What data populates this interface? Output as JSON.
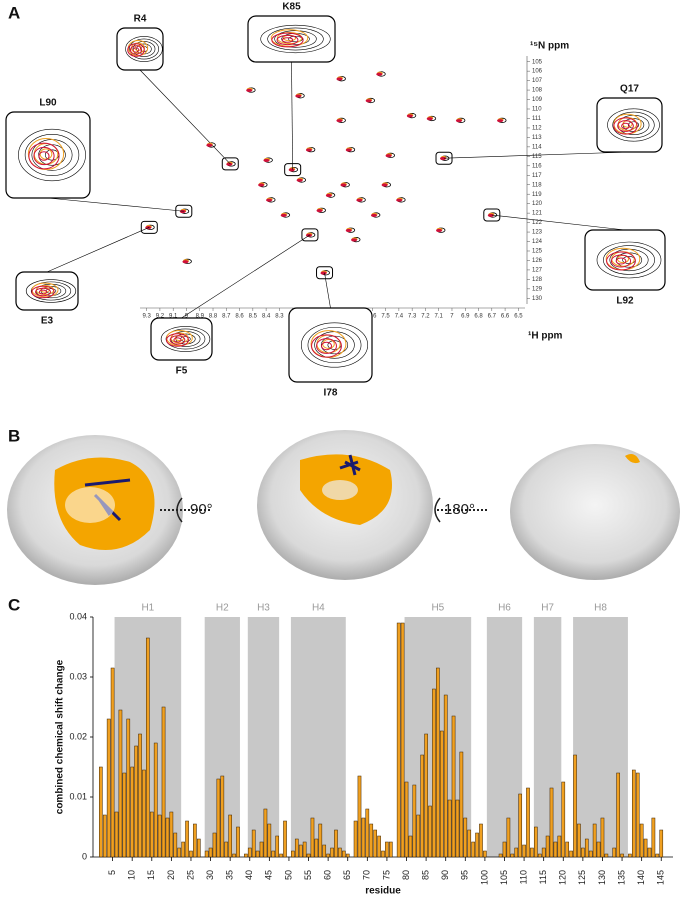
{
  "panel_labels": [
    "A",
    "B",
    "C"
  ],
  "panel_b": {
    "rotations": [
      "90°",
      "180°"
    ]
  },
  "chart_data": [
    {
      "type": "scatter",
      "x_label": "¹H ppm",
      "y_label": "¹⁵N ppm",
      "xlim": [
        9.35,
        6.45
      ],
      "ylim": [
        130.6,
        104.4
      ],
      "xticks": [
        9.3,
        9.2,
        9.1,
        9,
        8.9,
        8.8,
        8.7,
        8.6,
        8.5,
        8.4,
        8.3,
        8.2,
        8.1,
        8,
        7.9,
        7.8,
        7.7,
        7.6,
        7.5,
        7.4,
        7.3,
        7.2,
        7.1,
        7,
        6.9,
        6.8,
        6.7,
        6.6,
        6.5
      ],
      "yticks": [
        105,
        106,
        107,
        108,
        109,
        110,
        111,
        112,
        113,
        114,
        115,
        116,
        117,
        118,
        119,
        120,
        121,
        122,
        123,
        124,
        125,
        126,
        127,
        128,
        129,
        130
      ],
      "peaks": [
        {
          "label": "R4",
          "h": 8.67,
          "n": 115.8
        },
        {
          "label": "K85",
          "h": 8.2,
          "n": 116.4
        },
        {
          "label": "L90",
          "h": 9.02,
          "n": 120.8
        },
        {
          "label": "Q17",
          "h": 7.06,
          "n": 115.2
        },
        {
          "label": "E3",
          "h": 9.28,
          "n": 122.5
        },
        {
          "label": "F5",
          "h": 8.07,
          "n": 123.3
        },
        {
          "label": "I78",
          "h": 7.96,
          "n": 127.3
        },
        {
          "label": "L92",
          "h": 6.7,
          "n": 121.2
        },
        {
          "h": 7.54,
          "n": 106.3
        },
        {
          "h": 7.84,
          "n": 106.8
        },
        {
          "h": 8.52,
          "n": 108
        },
        {
          "h": 8.15,
          "n": 108.6
        },
        {
          "h": 8.82,
          "n": 113.8
        },
        {
          "h": 8.39,
          "n": 115.4
        },
        {
          "h": 7.84,
          "n": 111.2
        },
        {
          "h": 7.62,
          "n": 109.1
        },
        {
          "h": 7.31,
          "n": 110.7
        },
        {
          "h": 7.16,
          "n": 111
        },
        {
          "h": 6.94,
          "n": 111.2
        },
        {
          "h": 6.63,
          "n": 111.2
        },
        {
          "h": 8.43,
          "n": 118
        },
        {
          "h": 8.37,
          "n": 119.6
        },
        {
          "h": 8.26,
          "n": 121.2
        },
        {
          "h": 7.99,
          "n": 120.7
        },
        {
          "h": 7.92,
          "n": 119.1
        },
        {
          "h": 7.81,
          "n": 118
        },
        {
          "h": 7.69,
          "n": 119.6
        },
        {
          "h": 7.5,
          "n": 118
        },
        {
          "h": 7.39,
          "n": 119.6
        },
        {
          "h": 7.58,
          "n": 121.2
        },
        {
          "h": 7.77,
          "n": 122.8
        },
        {
          "h": 8.14,
          "n": 117.5
        },
        {
          "h": 8.07,
          "n": 114.3
        },
        {
          "h": 7.77,
          "n": 114.3
        },
        {
          "h": 7.47,
          "n": 114.9
        },
        {
          "h": 7.09,
          "n": 122.8
        },
        {
          "h": 7.73,
          "n": 123.8
        },
        {
          "h": 9.0,
          "n": 126.1
        }
      ]
    },
    {
      "type": "bar",
      "x_label": "residue",
      "y_label": "combined chemical shift change",
      "color": "#f0a020",
      "xlim": [
        0,
        148
      ],
      "ylim": [
        0,
        0.04
      ],
      "xticks": [
        5,
        10,
        15,
        20,
        25,
        30,
        35,
        40,
        45,
        50,
        55,
        60,
        65,
        70,
        75,
        80,
        85,
        90,
        95,
        100,
        105,
        110,
        115,
        120,
        125,
        130,
        135,
        140,
        145
      ],
      "yticks": [
        0,
        0.01,
        0.02,
        0.03,
        0.04
      ],
      "helices": [
        {
          "name": "H1",
          "start": 5.5,
          "end": 22.5
        },
        {
          "name": "H2",
          "start": 28.5,
          "end": 37.5
        },
        {
          "name": "H3",
          "start": 39.5,
          "end": 47.5
        },
        {
          "name": "H4",
          "start": 50.5,
          "end": 64.5
        },
        {
          "name": "H5",
          "start": 79.5,
          "end": 96.5
        },
        {
          "name": "H6",
          "start": 100.5,
          "end": 109.5
        },
        {
          "name": "H7",
          "start": 112.5,
          "end": 119.5
        },
        {
          "name": "H8",
          "start": 122.5,
          "end": 136.5
        }
      ],
      "x": [
        1,
        2,
        3,
        4,
        5,
        6,
        7,
        8,
        9,
        10,
        11,
        12,
        13,
        14,
        15,
        16,
        17,
        18,
        19,
        20,
        21,
        22,
        23,
        24,
        25,
        26,
        27,
        28,
        29,
        30,
        31,
        32,
        33,
        34,
        35,
        36,
        37,
        38,
        39,
        40,
        41,
        42,
        43,
        44,
        45,
        46,
        47,
        48,
        49,
        50,
        51,
        52,
        53,
        54,
        55,
        56,
        57,
        58,
        59,
        60,
        61,
        62,
        63,
        64,
        65,
        66,
        67,
        68,
        69,
        70,
        71,
        72,
        73,
        74,
        75,
        76,
        77,
        78,
        79,
        80,
        81,
        82,
        83,
        84,
        85,
        86,
        87,
        88,
        89,
        90,
        91,
        92,
        93,
        94,
        95,
        96,
        97,
        98,
        99,
        100,
        101,
        102,
        103,
        104,
        105,
        106,
        107,
        108,
        109,
        110,
        111,
        112,
        113,
        114,
        115,
        116,
        117,
        118,
        119,
        120,
        121,
        122,
        123,
        124,
        125,
        126,
        127,
        128,
        129,
        130,
        131,
        132,
        133,
        134,
        135,
        136,
        137,
        138,
        139,
        140,
        141,
        142,
        143,
        144,
        145
      ],
      "values": [
        0,
        0.015,
        0.007,
        0.023,
        0.0315,
        0.0075,
        0.0245,
        0.014,
        0.023,
        0.015,
        0.0185,
        0.0205,
        0.0145,
        0.0365,
        0.0075,
        0.019,
        0.007,
        0.025,
        0.0065,
        0.0075,
        0.004,
        0.0015,
        0.0025,
        0.006,
        0.001,
        0.0055,
        0.003,
        0,
        0.001,
        0.0015,
        0.004,
        0.013,
        0.0135,
        0.0025,
        0.007,
        0.0005,
        0.005,
        0,
        0.0005,
        0.0015,
        0.0045,
        0.001,
        0.0025,
        0.008,
        0.0055,
        0.001,
        0.0035,
        0.0005,
        0.006,
        0,
        0.001,
        0.003,
        0.002,
        0.0025,
        0.0005,
        0.0065,
        0.003,
        0.0055,
        0.002,
        0.0005,
        0.0015,
        0.0045,
        0.0015,
        0.001,
        0.0005,
        0,
        0.006,
        0.0135,
        0.0065,
        0.008,
        0.0055,
        0.0045,
        0.0035,
        0.001,
        0.0025,
        0.0025,
        0,
        0.039,
        0.039,
        0.0125,
        0.0035,
        0.012,
        0.007,
        0.017,
        0.0205,
        0.0085,
        0.028,
        0.0315,
        0.021,
        0.027,
        0.0095,
        0.0235,
        0.0095,
        0.0175,
        0.0065,
        0.0045,
        0.0025,
        0.004,
        0.0055,
        0.001,
        0,
        0,
        0,
        0.0005,
        0.0025,
        0.0065,
        0.0005,
        0.0015,
        0.0105,
        0.002,
        0.0115,
        0.0015,
        0.005,
        0.0005,
        0.0015,
        0.0035,
        0.0115,
        0.0025,
        0.0035,
        0.0125,
        0.0025,
        0.001,
        0.017,
        0.0055,
        0.0015,
        0.003,
        0.001,
        0.0055,
        0.0025,
        0.0065,
        0.0005,
        0,
        0.0015,
        0.014,
        0.0005,
        0,
        0.0005,
        0.0145,
        0.014,
        0.0055,
        0.003,
        0.0015,
        0.0065,
        0.0005,
        0.0045
      ]
    }
  ]
}
